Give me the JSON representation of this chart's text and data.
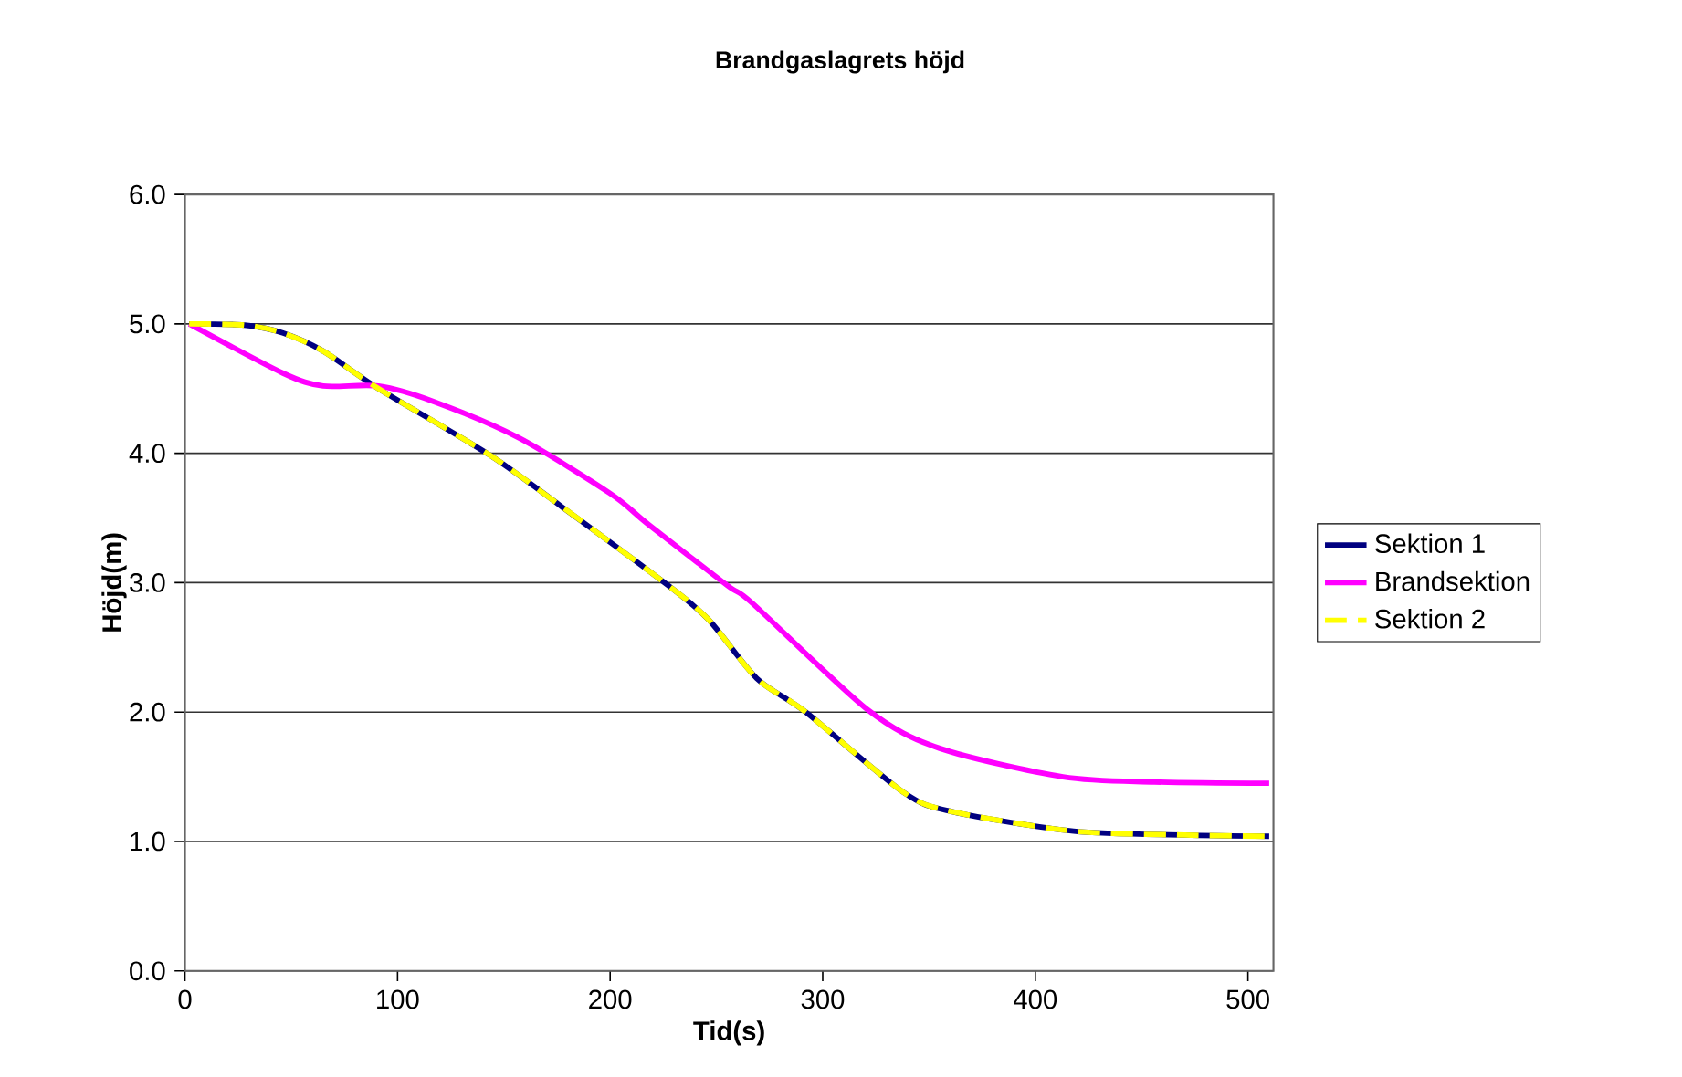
{
  "chart_data": {
    "type": "line",
    "title": "Brandgaslagrets höjd",
    "xlabel": "Tid(s)",
    "ylabel": "Höjd(m)",
    "xlim": [
      0,
      512
    ],
    "xticks": [
      0,
      100,
      200,
      300,
      400,
      500
    ],
    "ylim": [
      0,
      6
    ],
    "yticks": [
      {
        "value": 0,
        "label": "0.0"
      },
      {
        "value": 1,
        "label": "1.0"
      },
      {
        "value": 2,
        "label": "2.0"
      },
      {
        "value": 3,
        "label": "3.0"
      },
      {
        "value": 4,
        "label": "4.0"
      },
      {
        "value": 5,
        "label": "5.0"
      },
      {
        "value": 6,
        "label": "6.0"
      }
    ],
    "grid": "y",
    "legend": "right",
    "marker": "none",
    "series": [
      {
        "name": "Sektion 1",
        "color": "#000080",
        "line_style": "solid",
        "x": [
          2,
          28,
          46,
          65,
          91,
          143,
          177,
          224,
          246,
          269,
          292,
          338,
          361,
          418,
          470,
          510
        ],
        "values": [
          5.0,
          4.99,
          4.93,
          4.79,
          4.5,
          3.99,
          3.59,
          3.02,
          2.72,
          2.26,
          2.0,
          1.38,
          1.23,
          1.08,
          1.05,
          1.04
        ]
      },
      {
        "name": "Brandsektion",
        "color": "#ff00ff",
        "line_style": "solid",
        "x": [
          2,
          46,
          65,
          91,
          117,
          157,
          200,
          218,
          255,
          267,
          321,
          355,
          413,
          456,
          510
        ],
        "values": [
          5.0,
          4.62,
          4.52,
          4.52,
          4.4,
          4.12,
          3.69,
          3.45,
          2.98,
          2.84,
          2.02,
          1.72,
          1.5,
          1.46,
          1.45
        ]
      },
      {
        "name": "Sektion 2",
        "color": "#ffff00",
        "line_style": "dashed",
        "x": [
          2,
          28,
          46,
          65,
          91,
          143,
          177,
          224,
          246,
          269,
          292,
          338,
          361,
          418,
          470,
          510
        ],
        "values": [
          5.0,
          4.99,
          4.93,
          4.79,
          4.5,
          3.99,
          3.59,
          3.02,
          2.72,
          2.26,
          2.0,
          1.38,
          1.23,
          1.08,
          1.05,
          1.04
        ]
      }
    ]
  }
}
